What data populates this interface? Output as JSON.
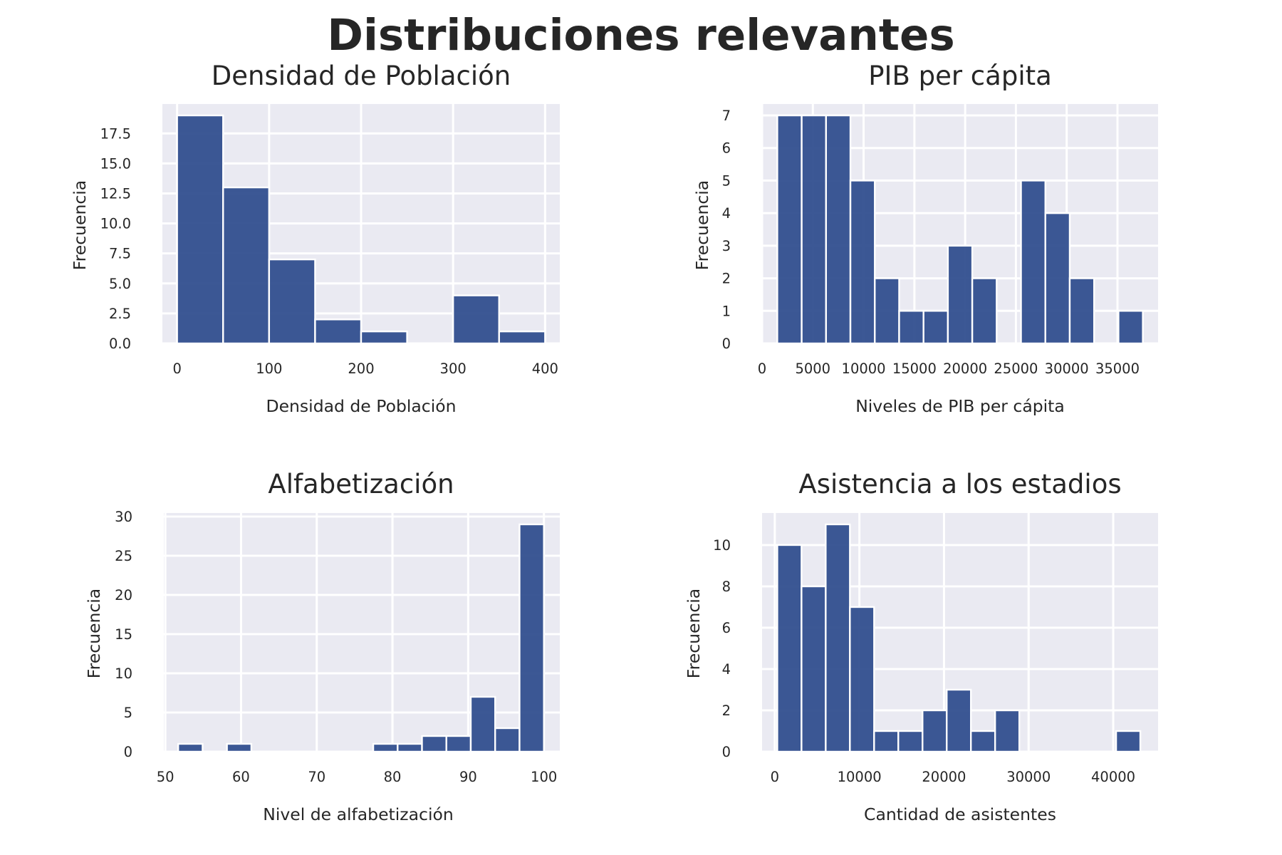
{
  "title": "Distribuciones relevantes",
  "colors": {
    "bar": "#2b4a8c",
    "background": "#eaeaf2",
    "grid": "#ffffff"
  },
  "chart_data": [
    {
      "type": "bar",
      "title": "Densidad de Población",
      "xlabel": "Densidad de Población",
      "ylabel": "Frecuencia",
      "bin_edges": [
        0,
        50,
        100,
        150,
        200,
        250,
        300,
        350,
        400
      ],
      "values": [
        19,
        13,
        7,
        2,
        1,
        0,
        4,
        1
      ],
      "xlim": [
        -16,
        416
      ],
      "ylim": [
        0,
        19.95
      ],
      "xticks": [
        0,
        100,
        200,
        300,
        400
      ],
      "xtick_labels": [
        "0",
        "100",
        "200",
        "300",
        "400"
      ],
      "yticks": [
        0,
        2.5,
        5,
        7.5,
        10,
        12.5,
        15,
        17.5
      ],
      "ytick_labels": [
        "0.0",
        "2.5",
        "5.0",
        "7.5",
        "10.0",
        "12.5",
        "15.0",
        "17.5"
      ],
      "grid": true
    },
    {
      "type": "bar",
      "title": "PIB per cápita",
      "xlabel": "Niveles de PIB per cápita",
      "ylabel": "Frecuencia",
      "bin_edges": [
        1500,
        3900,
        6300,
        8700,
        11100,
        13500,
        15900,
        18300,
        20700,
        23100,
        25500,
        27900,
        30300,
        32700,
        35100,
        37500
      ],
      "values": [
        7,
        7,
        7,
        5,
        2,
        1,
        1,
        3,
        2,
        0,
        5,
        4,
        2,
        0,
        1
      ],
      "xlim": [
        0,
        39000
      ],
      "ylim": [
        0,
        7.35
      ],
      "xticks": [
        0,
        5000,
        10000,
        15000,
        20000,
        25000,
        30000,
        35000
      ],
      "xtick_labels": [
        "0",
        "5000",
        "10000",
        "15000",
        "20000",
        "25000",
        "30000",
        "35000"
      ],
      "yticks": [
        0,
        1,
        2,
        3,
        4,
        5,
        6,
        7
      ],
      "ytick_labels": [
        "0",
        "1",
        "2",
        "3",
        "4",
        "5",
        "6",
        "7"
      ],
      "grid": true
    },
    {
      "type": "bar",
      "title": "Alfabetización",
      "xlabel": "Nivel de alfabetización",
      "ylabel": "Frecuencia",
      "bin_edges": [
        51.7,
        54.92,
        58.14,
        61.36,
        64.58,
        67.8,
        71.02,
        74.24,
        77.46,
        80.68,
        83.9,
        87.12,
        90.34,
        93.56,
        96.78,
        100
      ],
      "values": [
        1,
        0,
        1,
        0,
        0,
        0,
        0,
        0,
        1,
        1,
        2,
        2,
        7,
        3,
        29
      ],
      "xlim": [
        49.8,
        102.1
      ],
      "ylim": [
        0,
        30.45
      ],
      "xticks": [
        50,
        60,
        70,
        80,
        90,
        100
      ],
      "xtick_labels": [
        "50",
        "60",
        "70",
        "80",
        "90",
        "100"
      ],
      "yticks": [
        0,
        5,
        10,
        15,
        20,
        25,
        30
      ],
      "ytick_labels": [
        "0",
        "5",
        "10",
        "15",
        "20",
        "25",
        "30"
      ],
      "grid": true
    },
    {
      "type": "bar",
      "title": "Asistencia a los estadios",
      "xlabel": "Cantidad de asistentes",
      "ylabel": "Frecuencia",
      "bin_edges": [
        300,
        3160,
        6020,
        8880,
        11740,
        14600,
        17460,
        20320,
        23180,
        26040,
        28900,
        31760,
        34620,
        37480,
        40340,
        43200
      ],
      "values": [
        10,
        8,
        11,
        7,
        1,
        1,
        2,
        3,
        1,
        2,
        0,
        0,
        0,
        0,
        1
      ],
      "xlim": [
        -1500,
        45300
      ],
      "ylim": [
        0,
        11.55
      ],
      "xticks": [
        0,
        10000,
        20000,
        30000,
        40000
      ],
      "xtick_labels": [
        "0",
        "10000",
        "20000",
        "30000",
        "40000"
      ],
      "yticks": [
        0,
        2,
        4,
        6,
        8,
        10
      ],
      "ytick_labels": [
        "0",
        "2",
        "4",
        "6",
        "8",
        "10"
      ],
      "grid": true
    }
  ]
}
